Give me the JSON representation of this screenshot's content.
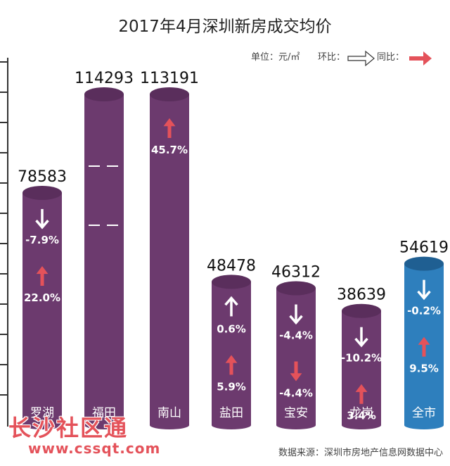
{
  "chart_data": {
    "type": "bar",
    "title": "2017年4月深圳新房成交均价",
    "unit_label": "单位：元/㎡",
    "legend": {
      "mom_label": "环比：",
      "yoy_label": "同比："
    },
    "categories": [
      "罗湖",
      "福田",
      "南山",
      "盐田",
      "宝安",
      "龙岗",
      "全市"
    ],
    "values": [
      78583,
      114293,
      113191,
      48478,
      46312,
      38639,
      54619
    ],
    "value_labels": [
      "78583",
      "114293",
      "113191",
      "48478",
      "46312",
      "38639",
      "54619"
    ],
    "mom_change": [
      {
        "text": "-7.9%",
        "direction": "down"
      },
      null,
      null,
      {
        "text": "0.6%",
        "direction": "up"
      },
      {
        "text": "-4.4%",
        "direction": "down"
      },
      {
        "text": "-10.2%",
        "direction": "down"
      },
      {
        "text": "-0.2%",
        "direction": "down"
      }
    ],
    "yoy_change": [
      {
        "text": "22.0%",
        "direction": "up"
      },
      null,
      {
        "text": "45.7%",
        "direction": "up"
      },
      {
        "text": "5.9%",
        "direction": "up"
      },
      {
        "text": "-4.4%",
        "direction": "down"
      },
      {
        "text": "3.4%",
        "direction": "up"
      },
      {
        "text": "9.5%",
        "direction": "up"
      }
    ],
    "axis_breaks": [
      "福田"
    ],
    "highlight_category": "全市",
    "colors": {
      "bar": "#6c3a6e",
      "bar_top": "#5a2e5c",
      "bar_highlight": "#2e7fbd",
      "bar_highlight_top": "#1f5f92",
      "mom_arrow": "#ffffff",
      "yoy_arrow": "#e4525a",
      "value_text": "#111111",
      "label_text": "#ffffff"
    }
  },
  "source": "数据来源：深圳市房地产信息网数据中心",
  "watermark": {
    "cn": "长沙社区通",
    "url": "www.cssqt.com"
  }
}
